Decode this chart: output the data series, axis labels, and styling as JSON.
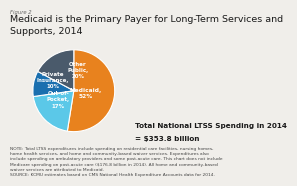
{
  "title_line1": "Medicaid is the Primary Payer for Long-Term Services and",
  "title_line2": "Supports, 2014",
  "figure_label": "Figure 2",
  "slices": [
    {
      "label": "Medicaid,\n52%",
      "value": 52,
      "color": "#E8821E"
    },
    {
      "label": "Other\nPublic,\n20%",
      "value": 20,
      "color": "#5BC8E8"
    },
    {
      "label": "Private\nInsurance,\n10%",
      "value": 10,
      "color": "#1A6FAF"
    },
    {
      "label": "Out-of-\nPocket,\n17%",
      "value": 17,
      "color": "#4A5A6B"
    }
  ],
  "startangle": 90,
  "annotation_line1": "Total National LTSS Spending in 2014",
  "annotation_line2": "= $353.8 billion",
  "note_text": "NOTE: Total LTSS expenditures include spending on residential care facilities, nursing homes,\nhome health services, and home and community-based waiver services. Expenditures also\ninclude spending on ambulatory providers and some post-acute care. This chart does not include\nMedicare spending on post-acute care ($176.8 billion in 2014). All home and community-based\nwaiver services are attributed to Medicaid.\nSOURCE: KCMU estimates based on CMS National Health Expenditure Accounts data for 2014.",
  "background_color": "#f0eeea",
  "title_fontsize": 6.8,
  "label_fontsize": 4.2,
  "annotation_fontsize": 5.2,
  "note_fontsize": 3.2,
  "figure_label_fontsize": 3.8
}
